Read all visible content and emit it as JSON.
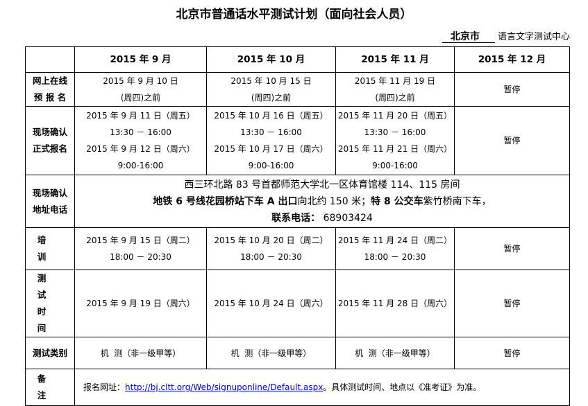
{
  "title": "北京市普通话水平测试计划（面向社会人员）",
  "org": {
    "city": "北京市",
    "center": "语言文字测试中心"
  },
  "months": [
    "2015 年 9 月",
    "2015 年 10 月",
    "2015 年 11 月",
    "2015 年 12 月"
  ],
  "rows": {
    "online": {
      "label1": "网上在线",
      "label2": "预 报 名",
      "cells": [
        [
          "2015 年 9 月 10 日",
          "(周四)之前"
        ],
        [
          "2015 年 10 月 15 日",
          "(周四)之前"
        ],
        [
          "2015 年 11 月 19 日",
          "(周四)之前"
        ]
      ],
      "last": "暂停"
    },
    "confirm": {
      "label1": "现场确认",
      "label2": "正式报名",
      "cells": [
        [
          "2015 年 9 月 11 日（周五）",
          "13:30 － 16:00",
          "2015 年 9 月 12 日（周六）",
          "9:00-16:00"
        ],
        [
          "2015 年 10 月 16 日（周五）",
          "13:30 － 16:00",
          "2015 年 10 月 17 日（周六）",
          "9:00-16:00"
        ],
        [
          "2015 年 11 月 20 日（周五）",
          "13:30 － 16:00",
          "2015 年 11 月 21 日（周六）",
          "9:00-16:00"
        ]
      ],
      "last": "暂停"
    },
    "address": {
      "label1": "现场确认",
      "label2": "地址电话",
      "line1": "西三环北路 83 号首都师范大学北一区体育馆楼 114、115 房间",
      "line2a": "地铁 6 号线花园桥站下车 A 出口",
      "line2b": "向北约 150 米；",
      "line2c": "特 8 公交车",
      "line2d": "紫竹桥南下车，",
      "phone_label": "联系电话：",
      "phone": "68903424"
    },
    "training": {
      "label": "培训",
      "cells": [
        [
          "2015 年 9 月 15 日（周二）",
          "18:00 － 20:30"
        ],
        [
          "2015 年 10 月 20 日（周二）",
          "18:00 － 20:30"
        ],
        [
          "2015 年 11 月 24 日（周二）",
          "18:00 － 20:30"
        ]
      ],
      "last": "暂停"
    },
    "test_time": {
      "label1": "测试",
      "label2": "时间",
      "cells": [
        "2015 年 9 月 19 日（周六）",
        "2015 年 10 月 24 日（周六）",
        "2015 年 11 月 28 日（周六）"
      ],
      "last": "暂停"
    },
    "test_type": {
      "label": "测试类别",
      "cells": [
        "机  测（非一级甲等）",
        "机  测（非一级甲等）",
        "机  测（非一级甲等）"
      ],
      "last": "暂停"
    },
    "remark": {
      "label": "备注",
      "prefix": "报名网址：",
      "url": "http://bj.cltt.org/Web/signuponline/Default.aspx",
      "suffix": "。具体测试时间、地点以《准考证》为准。"
    }
  }
}
